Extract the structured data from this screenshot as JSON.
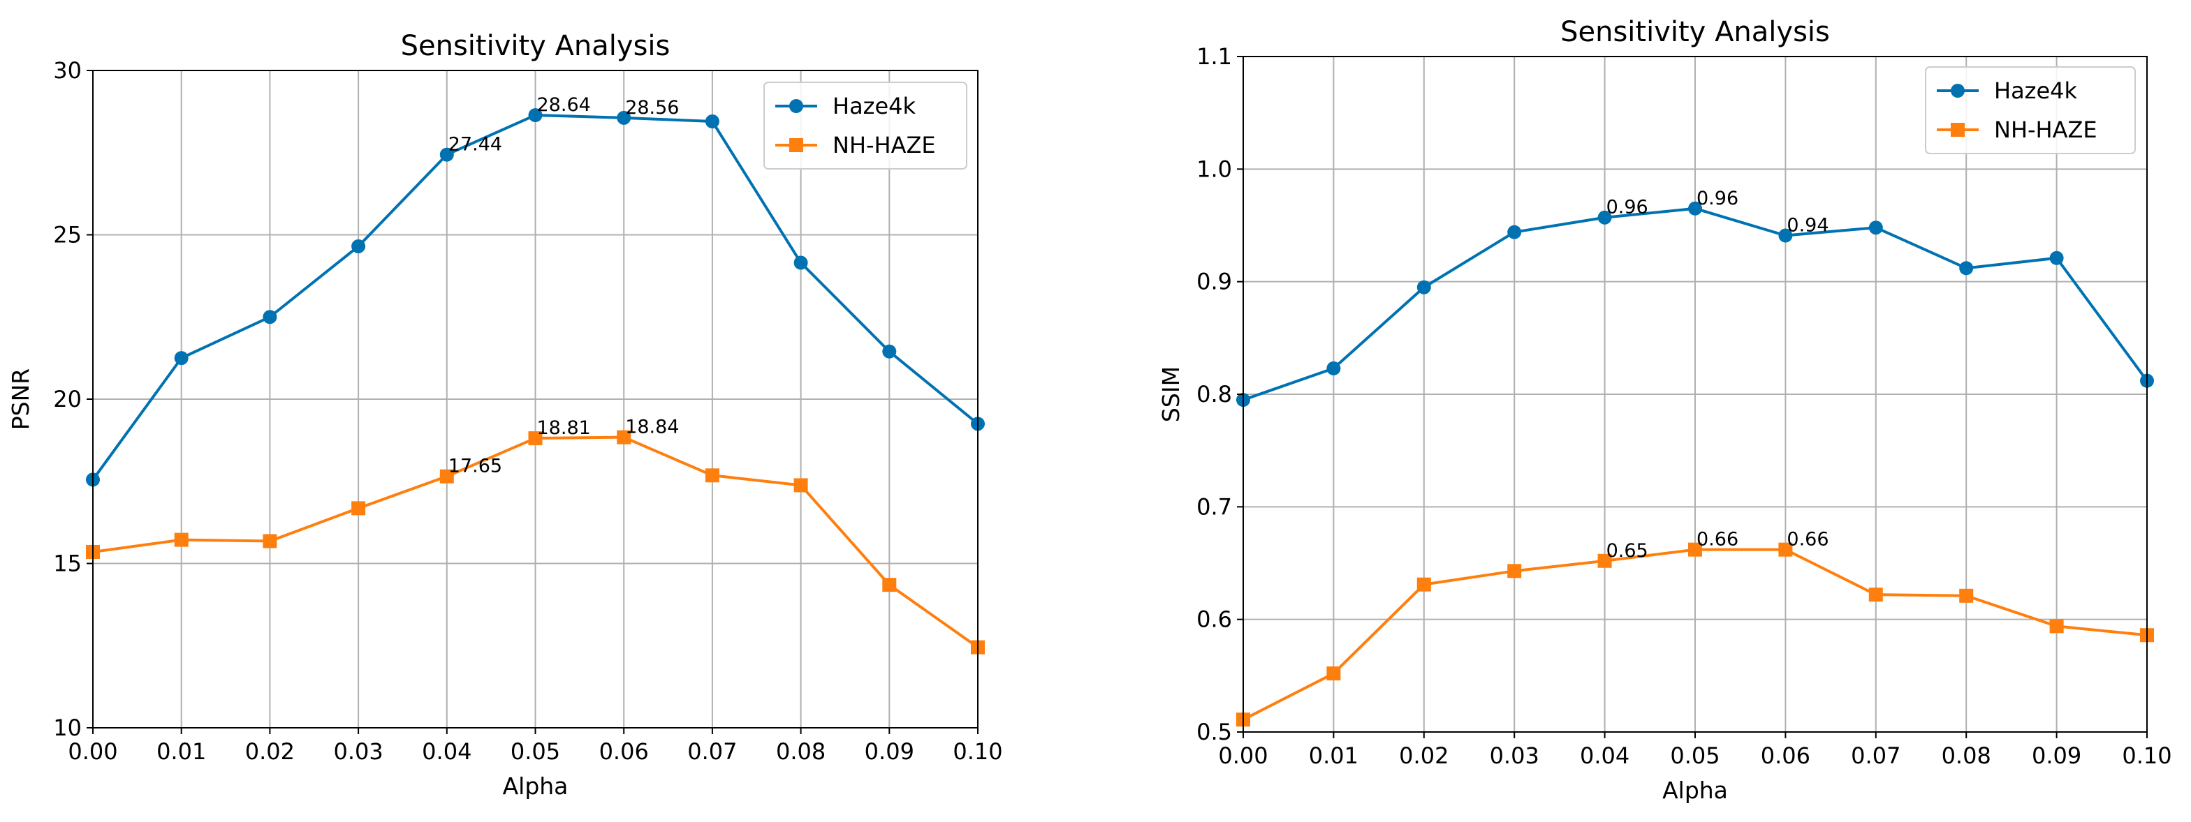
{
  "chart_data": [
    {
      "type": "line",
      "title": "Sensitivity Analysis",
      "xlabel": "Alpha",
      "ylabel": "PSNR",
      "xlim": [
        0.0,
        0.1
      ],
      "ylim": [
        10,
        30
      ],
      "grid": true,
      "legend_position": "upper-right",
      "x": [
        0.0,
        0.01,
        0.02,
        0.03,
        0.04,
        0.05,
        0.06,
        0.07,
        0.08,
        0.09,
        0.1
      ],
      "x_tick_labels": [
        "0.00",
        "0.01",
        "0.02",
        "0.03",
        "0.04",
        "0.05",
        "0.06",
        "0.07",
        "0.08",
        "0.09",
        "0.10"
      ],
      "y_ticks": [
        10,
        15,
        20,
        25,
        30
      ],
      "y_tick_labels": [
        "10",
        "15",
        "20",
        "25",
        "30"
      ],
      "series": [
        {
          "name": "Haze4k",
          "color": "#0072b2",
          "marker": "circle",
          "values": [
            17.55,
            21.25,
            22.5,
            24.65,
            27.44,
            28.64,
            28.56,
            28.45,
            24.15,
            21.45,
            19.25
          ],
          "annotations": [
            {
              "index": 4,
              "label": "27.44"
            },
            {
              "index": 5,
              "label": "28.64"
            },
            {
              "index": 6,
              "label": "28.56"
            }
          ]
        },
        {
          "name": "NH-HAZE",
          "color": "#ff7f0e",
          "marker": "square",
          "values": [
            15.35,
            15.72,
            15.68,
            16.68,
            17.65,
            18.81,
            18.84,
            17.68,
            17.38,
            14.35,
            12.45
          ],
          "annotations": [
            {
              "index": 4,
              "label": "17.65"
            },
            {
              "index": 5,
              "label": "18.81"
            },
            {
              "index": 6,
              "label": "18.84"
            }
          ]
        }
      ]
    },
    {
      "type": "line",
      "title": "Sensitivity Analysis",
      "xlabel": "Alpha",
      "ylabel": "SSIM",
      "xlim": [
        0.0,
        0.1
      ],
      "ylim": [
        0.5,
        1.1
      ],
      "grid": true,
      "legend_position": "upper-right",
      "x": [
        0.0,
        0.01,
        0.02,
        0.03,
        0.04,
        0.05,
        0.06,
        0.07,
        0.08,
        0.09,
        0.1
      ],
      "x_tick_labels": [
        "0.00",
        "0.01",
        "0.02",
        "0.03",
        "0.04",
        "0.05",
        "0.06",
        "0.07",
        "0.08",
        "0.09",
        "0.10"
      ],
      "y_ticks": [
        0.5,
        0.6,
        0.7,
        0.8,
        0.9,
        1.0,
        1.1
      ],
      "y_tick_labels": [
        "0.5",
        "0.6",
        "0.7",
        "0.8",
        "0.9",
        "1.0",
        "1.1"
      ],
      "series": [
        {
          "name": "Haze4k",
          "color": "#0072b2",
          "marker": "circle",
          "values": [
            0.795,
            0.823,
            0.895,
            0.944,
            0.957,
            0.965,
            0.941,
            0.948,
            0.912,
            0.921,
            0.812
          ],
          "annotations": [
            {
              "index": 4,
              "label": "0.96"
            },
            {
              "index": 5,
              "label": "0.96"
            },
            {
              "index": 6,
              "label": "0.94"
            }
          ]
        },
        {
          "name": "NH-HAZE",
          "color": "#ff7f0e",
          "marker": "square",
          "values": [
            0.511,
            0.552,
            0.631,
            0.643,
            0.652,
            0.662,
            0.662,
            0.622,
            0.621,
            0.594,
            0.586
          ],
          "annotations": [
            {
              "index": 4,
              "label": "0.65"
            },
            {
              "index": 5,
              "label": "0.66"
            },
            {
              "index": 6,
              "label": "0.66"
            }
          ]
        }
      ]
    }
  ]
}
